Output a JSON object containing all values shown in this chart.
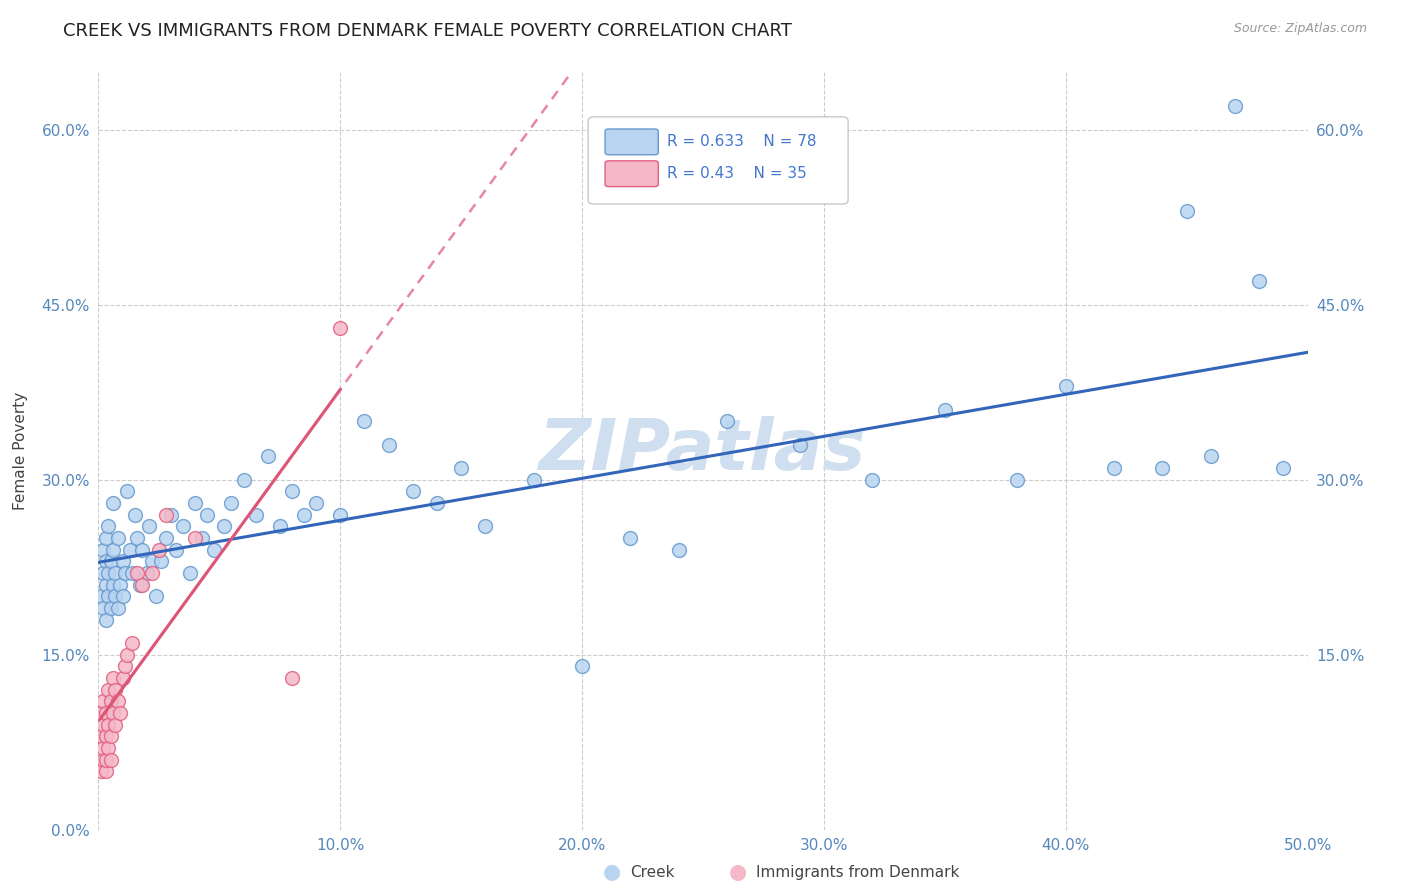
{
  "title": "CREEK VS IMMIGRANTS FROM DENMARK FEMALE POVERTY CORRELATION CHART",
  "source": "Source: ZipAtlas.com",
  "ylabel": "Female Poverty",
  "xlim": [
    0.0,
    0.5
  ],
  "ylim": [
    0.0,
    0.65
  ],
  "yticks": [
    0.0,
    0.15,
    0.3,
    0.45,
    0.6
  ],
  "xticks": [
    0.0,
    0.1,
    0.2,
    0.3,
    0.4,
    0.5
  ],
  "creek_color": "#b8d4f0",
  "denmark_color": "#f5b8c8",
  "creek_edge_color": "#6699cc",
  "denmark_edge_color": "#e06080",
  "creek_line_color": "#3366bb",
  "denmark_line_color": "#dd5577",
  "watermark_color": "#d0dff0",
  "creek_R": 0.633,
  "creek_N": 78,
  "denmark_R": 0.43,
  "denmark_N": 35,
  "creek_x": [
    0.001,
    0.002,
    0.002,
    0.002,
    0.003,
    0.003,
    0.003,
    0.003,
    0.004,
    0.004,
    0.004,
    0.005,
    0.005,
    0.006,
    0.006,
    0.006,
    0.007,
    0.007,
    0.008,
    0.008,
    0.009,
    0.01,
    0.01,
    0.011,
    0.012,
    0.013,
    0.014,
    0.015,
    0.016,
    0.017,
    0.018,
    0.02,
    0.021,
    0.022,
    0.024,
    0.026,
    0.028,
    0.03,
    0.032,
    0.035,
    0.038,
    0.04,
    0.043,
    0.045,
    0.048,
    0.052,
    0.055,
    0.06,
    0.065,
    0.07,
    0.075,
    0.08,
    0.085,
    0.09,
    0.1,
    0.11,
    0.12,
    0.13,
    0.14,
    0.15,
    0.16,
    0.18,
    0.2,
    0.22,
    0.24,
    0.26,
    0.29,
    0.32,
    0.35,
    0.38,
    0.4,
    0.42,
    0.44,
    0.45,
    0.46,
    0.47,
    0.48,
    0.49
  ],
  "creek_y": [
    0.2,
    0.19,
    0.22,
    0.24,
    0.18,
    0.21,
    0.23,
    0.25,
    0.2,
    0.22,
    0.26,
    0.19,
    0.23,
    0.21,
    0.24,
    0.28,
    0.2,
    0.22,
    0.19,
    0.25,
    0.21,
    0.2,
    0.23,
    0.22,
    0.29,
    0.24,
    0.22,
    0.27,
    0.25,
    0.21,
    0.24,
    0.22,
    0.26,
    0.23,
    0.2,
    0.23,
    0.25,
    0.27,
    0.24,
    0.26,
    0.22,
    0.28,
    0.25,
    0.27,
    0.24,
    0.26,
    0.28,
    0.3,
    0.27,
    0.32,
    0.26,
    0.29,
    0.27,
    0.28,
    0.27,
    0.35,
    0.33,
    0.29,
    0.28,
    0.31,
    0.26,
    0.3,
    0.14,
    0.25,
    0.24,
    0.35,
    0.33,
    0.3,
    0.36,
    0.3,
    0.38,
    0.31,
    0.31,
    0.53,
    0.32,
    0.62,
    0.47,
    0.31
  ],
  "denmark_x": [
    0.001,
    0.001,
    0.001,
    0.002,
    0.002,
    0.002,
    0.002,
    0.003,
    0.003,
    0.003,
    0.003,
    0.004,
    0.004,
    0.004,
    0.005,
    0.005,
    0.005,
    0.006,
    0.006,
    0.007,
    0.007,
    0.008,
    0.009,
    0.01,
    0.011,
    0.012,
    0.014,
    0.016,
    0.018,
    0.022,
    0.025,
    0.028,
    0.04,
    0.08,
    0.1
  ],
  "denmark_y": [
    0.05,
    0.08,
    0.1,
    0.06,
    0.09,
    0.11,
    0.07,
    0.05,
    0.08,
    0.1,
    0.06,
    0.09,
    0.12,
    0.07,
    0.08,
    0.11,
    0.06,
    0.1,
    0.13,
    0.09,
    0.12,
    0.11,
    0.1,
    0.13,
    0.14,
    0.15,
    0.16,
    0.22,
    0.21,
    0.22,
    0.24,
    0.27,
    0.25,
    0.13,
    0.43
  ]
}
